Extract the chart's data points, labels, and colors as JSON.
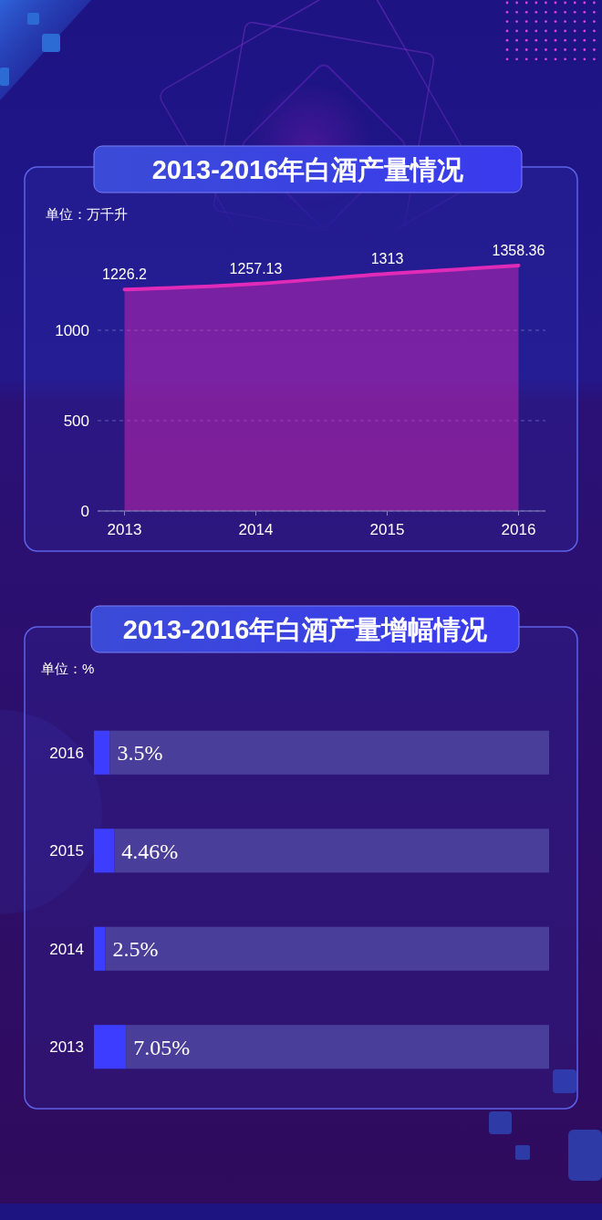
{
  "chart_data": [
    {
      "type": "area",
      "title": "2013-2016年白酒产量情况",
      "ylabel": "单位：万千升",
      "categories": [
        "2013",
        "2014",
        "2015",
        "2016"
      ],
      "series": [
        {
          "color": "#e02ab8",
          "values": [
            1226.2,
            1257.13,
            1313,
            1358.36
          ]
        }
      ],
      "ylim": [
        0,
        1358.36
      ],
      "yticks": [
        0,
        500,
        1000
      ],
      "grid": "y",
      "data_labels": true
    },
    {
      "type": "bar",
      "orientation": "horizontal",
      "stacked": true,
      "title": "2013-2016年白酒产量增幅情况",
      "xlabel": "单位：%",
      "categories": [
        "2016",
        "2015",
        "2014",
        "2013"
      ],
      "series": [
        {
          "color": "#3d3dff",
          "values": [
            3.5,
            4.46,
            2.5,
            7.05
          ],
          "value_labels": [
            "3.5%",
            "4.46%",
            "2.5%",
            "7.05%"
          ]
        },
        {
          "color": "#4a3e9b",
          "values": [
            96.5,
            95.54,
            97.5,
            92.95
          ]
        }
      ],
      "xlim": [
        0,
        100
      ],
      "tick_labels": "y"
    }
  ]
}
